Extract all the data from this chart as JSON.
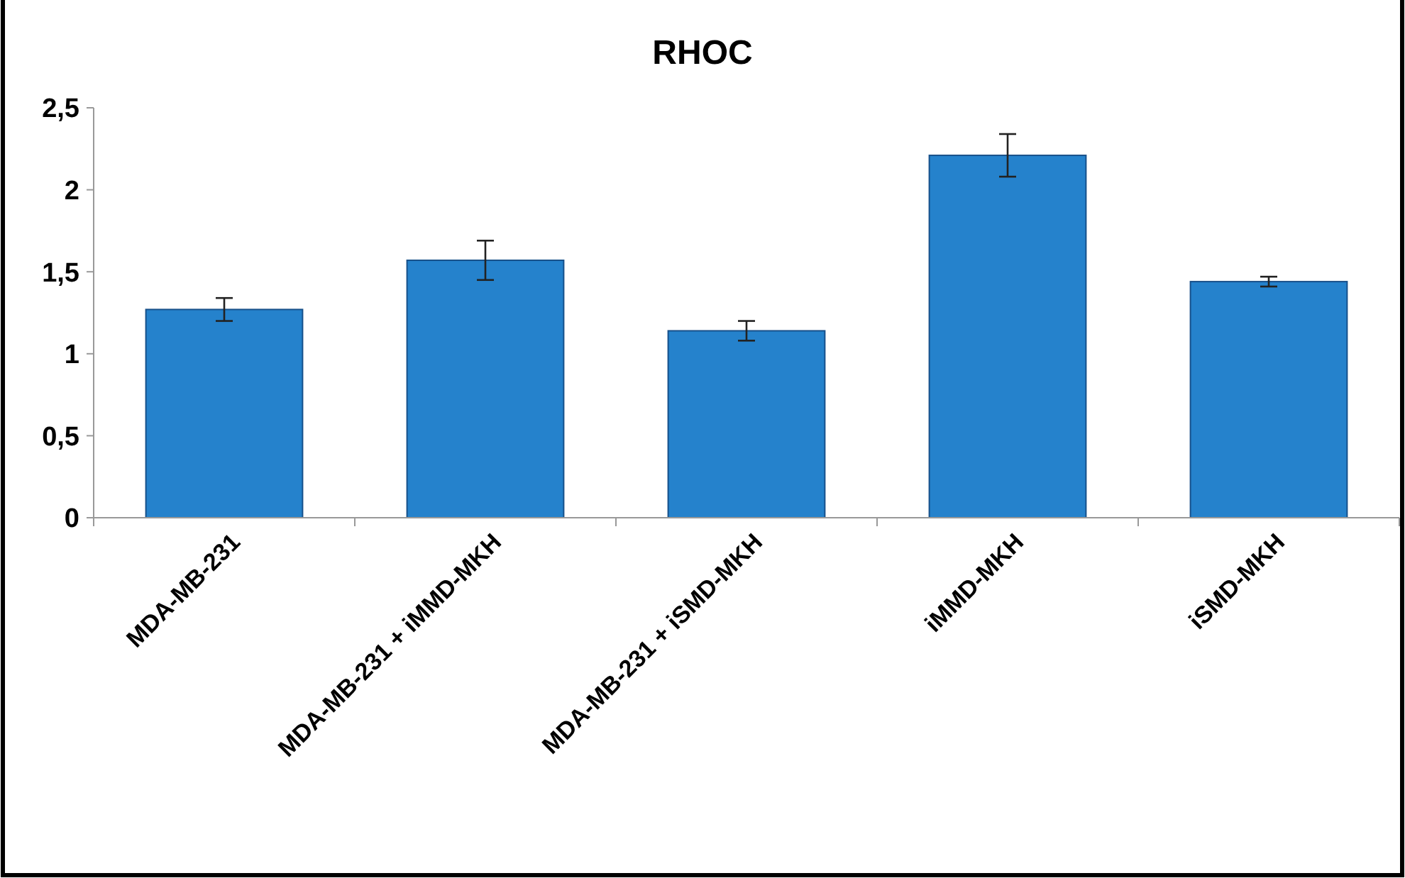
{
  "chart_data": {
    "type": "bar",
    "title": "RHOC",
    "categories": [
      "MDA-MB-231",
      "MDA-MB-231 + iMMD-MKH",
      "MDA-MB-231 + iSMD-MKH",
      "iMMD-MKH",
      "iSMD-MKH"
    ],
    "values": [
      1.27,
      1.57,
      1.14,
      2.21,
      1.44
    ],
    "errors": [
      0.07,
      0.12,
      0.06,
      0.13,
      0.03
    ],
    "color": "#2582cc",
    "ylim": [
      0,
      2.5
    ],
    "yticks": [
      {
        "value": 0,
        "label": "0"
      },
      {
        "value": 0.5,
        "label": "0,5"
      },
      {
        "value": 1,
        "label": "1"
      },
      {
        "value": 1.5,
        "label": "1,5"
      },
      {
        "value": 2,
        "label": "2"
      },
      {
        "value": 2.5,
        "label": "2,5"
      }
    ],
    "grid": false
  }
}
